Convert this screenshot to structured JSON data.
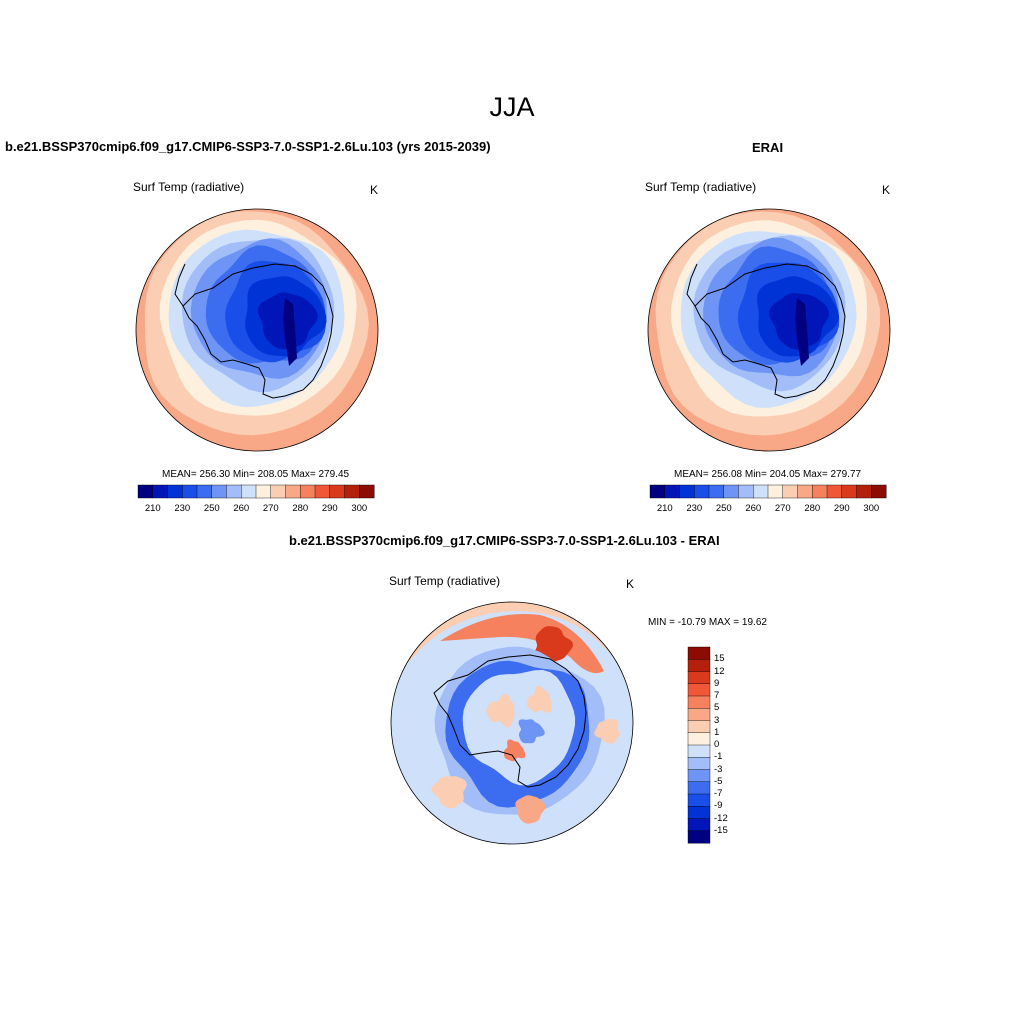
{
  "figure": {
    "title": "JJA"
  },
  "panels": {
    "model": {
      "title": "b.e21.BSSP370cmip6.f09_g17.CMIP6-SSP3-7.0-SSP1-2.6Lu.103 (yrs 2015-2039)",
      "variable": "Surf Temp (radiative)",
      "unit": "K",
      "stats": "MEAN= 256.30  Min= 208.05  Max= 279.45"
    },
    "obs": {
      "title": "ERAI",
      "variable": "Surf Temp (radiative)",
      "unit": "K",
      "stats": "MEAN= 256.08  Min= 204.05  Max= 279.77"
    },
    "diff": {
      "title": "b.e21.BSSP370cmip6.f09_g17.CMIP6-SSP3-7.0-SSP1-2.6Lu.103 - ERAI",
      "variable": "Surf Temp (radiative)",
      "unit": "K",
      "minmax": "MIN = -10.79 MAX =  19.62"
    }
  },
  "chart_data": [
    {
      "type": "heatmap",
      "projection": "south-polar-stereographic",
      "title": "b.e21.BSSP370cmip6.f09_g17.CMIP6-SSP3-7.0-SSP1-2.6Lu.103 (yrs 2015-2039)",
      "variable": "Surf Temp (radiative)",
      "unit": "K",
      "mean": 256.3,
      "min": 208.05,
      "max": 279.45,
      "levels": [
        205,
        210,
        220,
        230,
        240,
        250,
        255,
        260,
        265,
        270,
        275,
        280,
        285,
        290,
        295,
        300
      ],
      "colorbar_tick_labels": [
        "210",
        "230",
        "250",
        "260",
        "270",
        "280",
        "290",
        "300"
      ],
      "colors": [
        "#000080",
        "#0016b8",
        "#0033d6",
        "#1a4ee8",
        "#3c6cf0",
        "#6e95f5",
        "#a3bdf8",
        "#cfe0fb",
        "#fdf0de",
        "#fbcdb2",
        "#f8a886",
        "#f5815e",
        "#ef5736",
        "#d93a1c",
        "#b3200c",
        "#8c0b02"
      ]
    },
    {
      "type": "heatmap",
      "projection": "south-polar-stereographic",
      "title": "ERAI",
      "variable": "Surf Temp (radiative)",
      "unit": "K",
      "mean": 256.08,
      "min": 204.05,
      "max": 279.77,
      "levels": [
        205,
        210,
        220,
        230,
        240,
        250,
        255,
        260,
        265,
        270,
        275,
        280,
        285,
        290,
        295,
        300
      ],
      "colorbar_tick_labels": [
        "210",
        "230",
        "250",
        "260",
        "270",
        "280",
        "290",
        "300"
      ],
      "colors": [
        "#000080",
        "#0016b8",
        "#0033d6",
        "#1a4ee8",
        "#3c6cf0",
        "#6e95f5",
        "#a3bdf8",
        "#cfe0fb",
        "#fdf0de",
        "#fbcdb2",
        "#f8a886",
        "#f5815e",
        "#ef5736",
        "#d93a1c",
        "#b3200c",
        "#8c0b02"
      ]
    },
    {
      "type": "heatmap",
      "projection": "south-polar-stereographic",
      "title": "b.e21.BSSP370cmip6.f09_g17.CMIP6-SSP3-7.0-SSP1-2.6Lu.103 - ERAI",
      "variable": "Surf Temp (radiative)",
      "unit": "K",
      "min": -10.79,
      "max": 19.62,
      "levels": [
        -15,
        -12,
        -9,
        -7,
        -5,
        -3,
        -1,
        0,
        1,
        3,
        5,
        7,
        9,
        12,
        15
      ],
      "colorbar_tick_labels": [
        "15",
        "12",
        "9",
        "7",
        "5",
        "3",
        "1",
        "0",
        "-1",
        "-3",
        "-5",
        "-7",
        "-9",
        "-12",
        "-15"
      ],
      "colors": [
        "#000080",
        "#0016b8",
        "#0033d6",
        "#1a4ee8",
        "#3c6cf0",
        "#6e95f5",
        "#a3bdf8",
        "#cfe0fb",
        "#fdf0de",
        "#fbcdb2",
        "#f8a886",
        "#f5815e",
        "#ef5736",
        "#d93a1c",
        "#b3200c",
        "#8c0b02"
      ]
    }
  ]
}
